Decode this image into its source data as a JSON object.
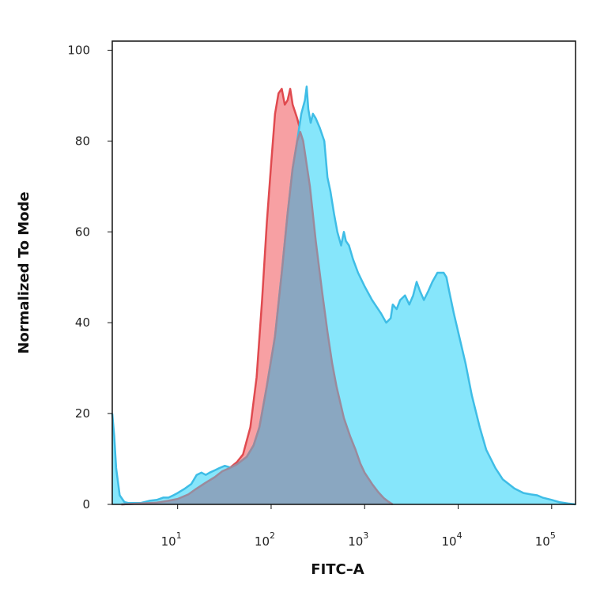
{
  "chart_data": {
    "type": "area",
    "xlabel": "FITC–A",
    "ylabel": "Normalized To Mode",
    "x_scale": "log",
    "xlim": [
      2,
      180000
    ],
    "ylim": [
      0,
      102
    ],
    "y_ticks": [
      {
        "value": 0,
        "label": "0"
      },
      {
        "value": 20,
        "label": "20"
      },
      {
        "value": 40,
        "label": "40"
      },
      {
        "value": 60,
        "label": "60"
      },
      {
        "value": 80,
        "label": "80"
      },
      {
        "value": 100,
        "label": "100"
      }
    ],
    "x_ticks": [
      {
        "value": 10,
        "base": "10",
        "exp": "1"
      },
      {
        "value": 100,
        "base": "10",
        "exp": "2"
      },
      {
        "value": 1000,
        "base": "10",
        "exp": "3"
      },
      {
        "value": 10000,
        "base": "10",
        "exp": "4"
      },
      {
        "value": 100000,
        "base": "10",
        "exp": "5"
      }
    ],
    "grid": false,
    "legend": "none",
    "series": [
      {
        "color_fill": "#f7a0a3",
        "color_line": "#e04a4f",
        "points": [
          [
            2.5,
            0
          ],
          [
            4,
            0.2
          ],
          [
            6,
            0.4
          ],
          [
            8,
            0.8
          ],
          [
            10,
            1.2
          ],
          [
            13,
            2.2
          ],
          [
            16,
            3.5
          ],
          [
            20,
            4.8
          ],
          [
            25,
            6.0
          ],
          [
            30,
            7.3
          ],
          [
            36,
            8.0
          ],
          [
            43,
            9.3
          ],
          [
            50,
            11.0
          ],
          [
            60,
            17
          ],
          [
            70,
            28
          ],
          [
            80,
            45
          ],
          [
            90,
            62
          ],
          [
            100,
            75
          ],
          [
            110,
            86
          ],
          [
            120,
            90.5
          ],
          [
            130,
            91.5
          ],
          [
            140,
            88
          ],
          [
            150,
            89
          ],
          [
            160,
            91.5
          ],
          [
            170,
            88
          ],
          [
            190,
            85
          ],
          [
            220,
            80
          ],
          [
            260,
            70
          ],
          [
            300,
            58
          ],
          [
            350,
            47
          ],
          [
            400,
            38
          ],
          [
            450,
            31
          ],
          [
            500,
            26
          ],
          [
            600,
            19
          ],
          [
            700,
            15
          ],
          [
            800,
            12
          ],
          [
            900,
            9
          ],
          [
            1000,
            7
          ],
          [
            1200,
            4.5
          ],
          [
            1400,
            2.7
          ],
          [
            1600,
            1.4
          ],
          [
            1800,
            0.6
          ],
          [
            2000,
            0
          ]
        ]
      },
      {
        "color_fill": "#86e6fb",
        "color_line": "#3fbde6",
        "points": [
          [
            2,
            20
          ],
          [
            2.1,
            15
          ],
          [
            2.2,
            8
          ],
          [
            2.4,
            2
          ],
          [
            2.7,
            0.5
          ],
          [
            3,
            0.3
          ],
          [
            4,
            0.3
          ],
          [
            5,
            0.8
          ],
          [
            6,
            1.0
          ],
          [
            7,
            1.5
          ],
          [
            8,
            1.5
          ],
          [
            9,
            2.0
          ],
          [
            10,
            2.5
          ],
          [
            12,
            3.5
          ],
          [
            14,
            4.5
          ],
          [
            16,
            6.5
          ],
          [
            18,
            7.0
          ],
          [
            20,
            6.5
          ],
          [
            22,
            7.0
          ],
          [
            25,
            7.5
          ],
          [
            28,
            8.0
          ],
          [
            32,
            8.5
          ],
          [
            38,
            8.0
          ],
          [
            45,
            9.0
          ],
          [
            55,
            10.5
          ],
          [
            65,
            13
          ],
          [
            75,
            17
          ],
          [
            90,
            26
          ],
          [
            110,
            37
          ],
          [
            130,
            51
          ],
          [
            150,
            64
          ],
          [
            170,
            74
          ],
          [
            190,
            80
          ],
          [
            210,
            86
          ],
          [
            230,
            89
          ],
          [
            240,
            92
          ],
          [
            250,
            87
          ],
          [
            265,
            84
          ],
          [
            280,
            86
          ],
          [
            300,
            85
          ],
          [
            330,
            83
          ],
          [
            370,
            80
          ],
          [
            400,
            72
          ],
          [
            430,
            69
          ],
          [
            470,
            64
          ],
          [
            510,
            60
          ],
          [
            560,
            57
          ],
          [
            600,
            60
          ],
          [
            630,
            58
          ],
          [
            680,
            57
          ],
          [
            750,
            54
          ],
          [
            850,
            51
          ],
          [
            1000,
            48
          ],
          [
            1200,
            45
          ],
          [
            1500,
            42
          ],
          [
            1700,
            40
          ],
          [
            1900,
            41
          ],
          [
            2000,
            44
          ],
          [
            2200,
            43
          ],
          [
            2400,
            45
          ],
          [
            2700,
            46
          ],
          [
            3000,
            44
          ],
          [
            3300,
            46
          ],
          [
            3600,
            49
          ],
          [
            3900,
            47
          ],
          [
            4300,
            45
          ],
          [
            4800,
            47
          ],
          [
            5300,
            49
          ],
          [
            6000,
            51
          ],
          [
            6500,
            51
          ],
          [
            7000,
            51
          ],
          [
            7500,
            50
          ],
          [
            8000,
            47
          ],
          [
            9000,
            42
          ],
          [
            10000,
            38
          ],
          [
            12000,
            31
          ],
          [
            14000,
            24
          ],
          [
            17000,
            17
          ],
          [
            20000,
            12
          ],
          [
            25000,
            8
          ],
          [
            30000,
            5.5
          ],
          [
            40000,
            3.5
          ],
          [
            50000,
            2.5
          ],
          [
            60000,
            2.2
          ],
          [
            70000,
            2.0
          ],
          [
            80000,
            1.5
          ],
          [
            100000,
            1.0
          ],
          [
            120000,
            0.5
          ],
          [
            150000,
            0.2
          ],
          [
            180000,
            0
          ]
        ]
      },
      {
        "color_fill": "#8aa7c1",
        "color_line": "#9b8a9c",
        "points": [
          [
            2.5,
            0
          ],
          [
            4,
            0.2
          ],
          [
            6,
            0.4
          ],
          [
            8,
            0.8
          ],
          [
            10,
            1.2
          ],
          [
            13,
            2.2
          ],
          [
            16,
            3.5
          ],
          [
            20,
            4.8
          ],
          [
            25,
            6.0
          ],
          [
            30,
            7.3
          ],
          [
            36,
            8.0
          ],
          [
            43,
            8.8
          ],
          [
            55,
            10.5
          ],
          [
            65,
            13
          ],
          [
            75,
            17
          ],
          [
            90,
            26
          ],
          [
            110,
            37
          ],
          [
            130,
            51
          ],
          [
            150,
            64
          ],
          [
            170,
            74
          ],
          [
            190,
            80
          ],
          [
            205,
            82
          ],
          [
            220,
            80
          ],
          [
            260,
            70
          ],
          [
            300,
            58
          ],
          [
            350,
            47
          ],
          [
            400,
            38
          ],
          [
            450,
            31
          ],
          [
            500,
            26
          ],
          [
            600,
            19
          ],
          [
            700,
            15
          ],
          [
            800,
            12
          ],
          [
            900,
            9
          ],
          [
            1000,
            7
          ],
          [
            1200,
            4.5
          ],
          [
            1400,
            2.7
          ],
          [
            1600,
            1.4
          ],
          [
            1800,
            0.6
          ],
          [
            2000,
            0
          ]
        ]
      }
    ]
  }
}
